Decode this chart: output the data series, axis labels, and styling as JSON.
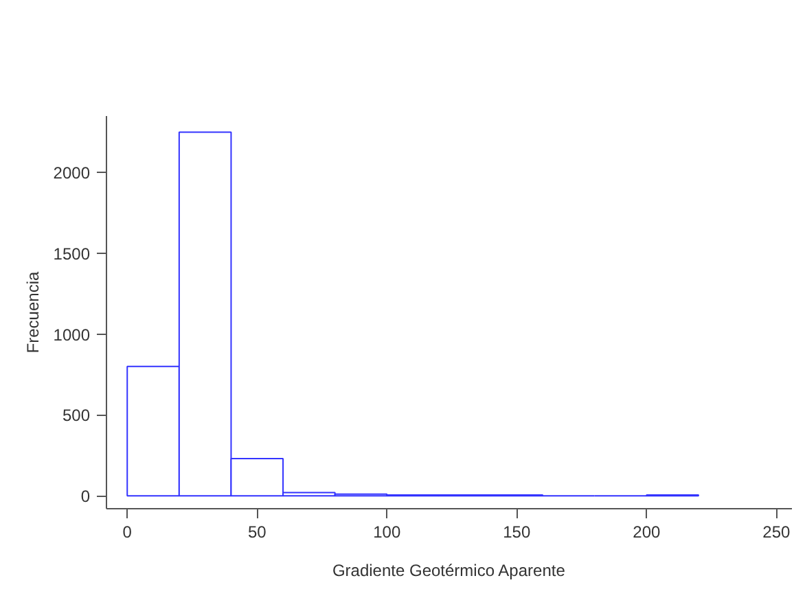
{
  "chart_data": {
    "type": "histogram",
    "xlabel": "Gradiente Geotérmico Aparente",
    "ylabel": "Frecuencia",
    "bins": [
      0,
      20,
      40,
      60,
      80,
      100,
      120,
      140,
      160,
      180,
      200,
      220
    ],
    "values": [
      800,
      2250,
      230,
      20,
      10,
      5,
      5,
      5,
      0,
      0,
      5
    ],
    "color": "#3333ff",
    "xlim": [
      -8,
      256
    ],
    "ylim": [
      -80,
      2350
    ],
    "xticks": [
      0,
      50,
      100,
      150,
      200,
      250
    ],
    "yticks": [
      0,
      500,
      1000,
      1500,
      2000
    ]
  }
}
